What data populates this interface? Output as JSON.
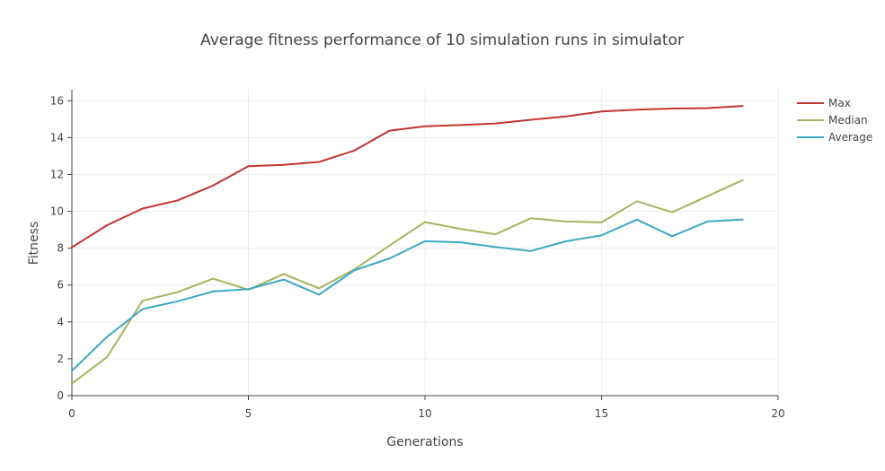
{
  "chart_data": {
    "type": "line",
    "title": "Average fitness performance of 10 simulation runs in simulator",
    "xlabel": "Generations",
    "ylabel": "Fitness",
    "xlim": [
      0,
      20
    ],
    "ylim": [
      0,
      16.6
    ],
    "xticks": [
      0,
      5,
      10,
      15,
      20
    ],
    "yticks": [
      0,
      2,
      4,
      6,
      8,
      10,
      12,
      14,
      16
    ],
    "grid": true,
    "legend_position": "top-right",
    "x": [
      0,
      1,
      2,
      3,
      4,
      5,
      6,
      7,
      8,
      9,
      10,
      11,
      12,
      13,
      14,
      15,
      16,
      17,
      18,
      19
    ],
    "series": [
      {
        "name": "Max",
        "color": "#c23531",
        "values": [
          8.05,
          9.25,
          10.15,
          10.6,
          11.4,
          12.45,
          12.52,
          12.68,
          13.3,
          14.38,
          14.62,
          14.68,
          14.77,
          14.97,
          15.15,
          15.42,
          15.52,
          15.58,
          15.6,
          15.72
        ]
      },
      {
        "name": "Median",
        "color": "#a5b45e",
        "values": [
          0.65,
          2.1,
          5.15,
          5.62,
          6.35,
          5.75,
          6.6,
          5.82,
          6.85,
          8.15,
          9.42,
          9.05,
          8.76,
          9.63,
          9.45,
          9.4,
          10.55,
          9.95,
          10.82,
          11.7
        ]
      },
      {
        "name": "Average",
        "color": "#3ba8c4",
        "values": [
          1.35,
          3.2,
          4.7,
          5.12,
          5.65,
          5.78,
          6.3,
          5.48,
          6.8,
          7.45,
          8.38,
          8.32,
          8.06,
          7.85,
          8.38,
          8.7,
          9.55,
          8.65,
          9.45,
          9.56
        ]
      }
    ]
  }
}
